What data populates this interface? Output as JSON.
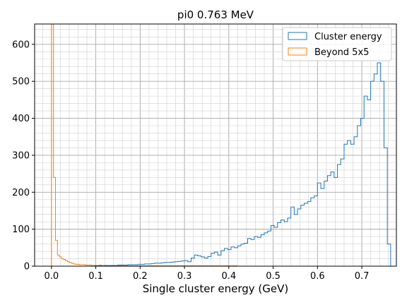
{
  "chart_data": {
    "type": "histogram-step",
    "title": "pi0 0.763 MeV",
    "xlabel": "Single cluster energy (GeV)",
    "ylabel": "",
    "xlim": [
      -0.038,
      0.778
    ],
    "ylim": [
      0,
      655
    ],
    "xticks": [
      0.0,
      0.1,
      0.2,
      0.3,
      0.4,
      0.5,
      0.6,
      0.7
    ],
    "xtick_labels": [
      "0.0",
      "0.1",
      "0.2",
      "0.3",
      "0.4",
      "0.5",
      "0.6",
      "0.7"
    ],
    "yticks": [
      0,
      100,
      200,
      300,
      400,
      500,
      600
    ],
    "ytick_labels": [
      "0",
      "100",
      "200",
      "300",
      "400",
      "500",
      "600"
    ],
    "grid": true,
    "legend_position": "top-right",
    "series": [
      {
        "name": "Cluster energy",
        "color": "#1f77b4",
        "bin_start": 0.0,
        "bin_width": 0.0075,
        "values": [
          0,
          0,
          0,
          0,
          0,
          0,
          0,
          0,
          0,
          0,
          0,
          0,
          0,
          1,
          1,
          1,
          2,
          2,
          2,
          2,
          3,
          3,
          3,
          4,
          4,
          4,
          5,
          5,
          6,
          6,
          7,
          8,
          8,
          9,
          10,
          10,
          11,
          12,
          13,
          14,
          15,
          12,
          22,
          30,
          28,
          25,
          22,
          26,
          35,
          38,
          30,
          42,
          48,
          45,
          52,
          50,
          55,
          60,
          62,
          75,
          72,
          80,
          78,
          85,
          90,
          95,
          110,
          105,
          118,
          125,
          120,
          130,
          160,
          140,
          155,
          165,
          170,
          175,
          185,
          190,
          225,
          210,
          230,
          245,
          255,
          240,
          275,
          290,
          330,
          340,
          330,
          350,
          380,
          400,
          460,
          450,
          500,
          520,
          550,
          500,
          320,
          60,
          0
        ]
      },
      {
        "name": "Beyond 5x5",
        "color": "#ff7f0e",
        "bin_start": 0.0,
        "bin_width": 0.0045,
        "values": [
          660,
          240,
          70,
          30,
          25,
          20,
          18,
          15,
          12,
          10,
          8,
          6,
          5,
          5,
          4,
          4,
          4,
          3,
          3,
          3,
          2,
          2,
          2,
          2,
          3,
          2,
          2,
          2,
          2,
          2,
          2,
          2,
          2,
          2,
          2,
          2,
          1,
          1,
          1,
          1,
          1,
          1,
          1,
          1,
          1,
          1,
          1,
          1,
          1,
          1,
          1,
          1,
          1,
          1,
          1,
          1,
          1,
          1,
          1,
          1,
          1,
          1,
          1,
          1,
          1,
          1,
          1,
          1,
          1,
          1,
          1,
          1,
          1,
          1,
          1,
          1,
          1,
          1,
          1,
          1,
          1,
          1,
          1,
          1,
          1,
          1,
          1,
          1,
          1,
          1,
          1,
          1,
          1,
          0
        ]
      }
    ]
  }
}
